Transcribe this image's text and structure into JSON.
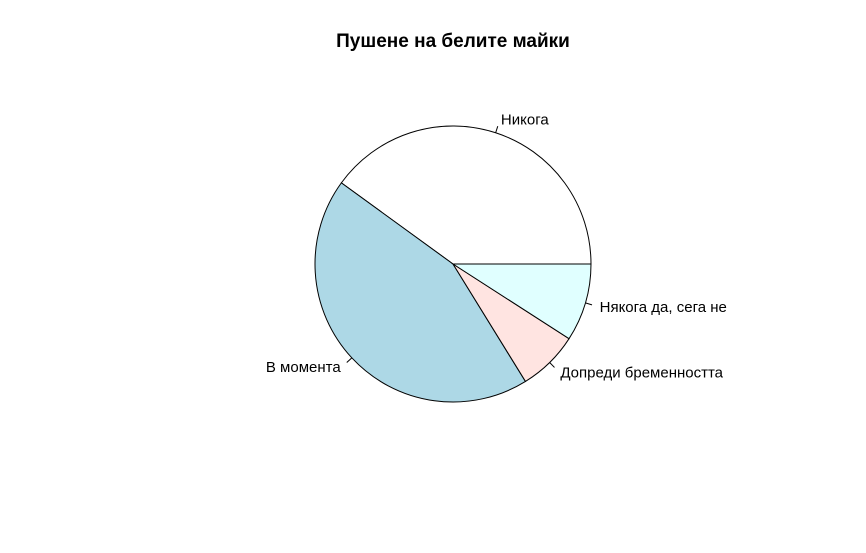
{
  "chart_data": {
    "type": "pie",
    "title": "Пушене на белите майки",
    "direction": "counterclockwise",
    "start_angle_deg": 0,
    "slices": [
      {
        "label": "Никога",
        "value": 40.0,
        "color": "#ffffff"
      },
      {
        "label": "В момента",
        "value": 43.8,
        "color": "#add8e6"
      },
      {
        "label": "Допреди бременността",
        "value": 7.1,
        "color": "#ffe4e1"
      },
      {
        "label": "Някога да, сега не",
        "value": 9.1,
        "color": "#e0ffff"
      }
    ]
  }
}
